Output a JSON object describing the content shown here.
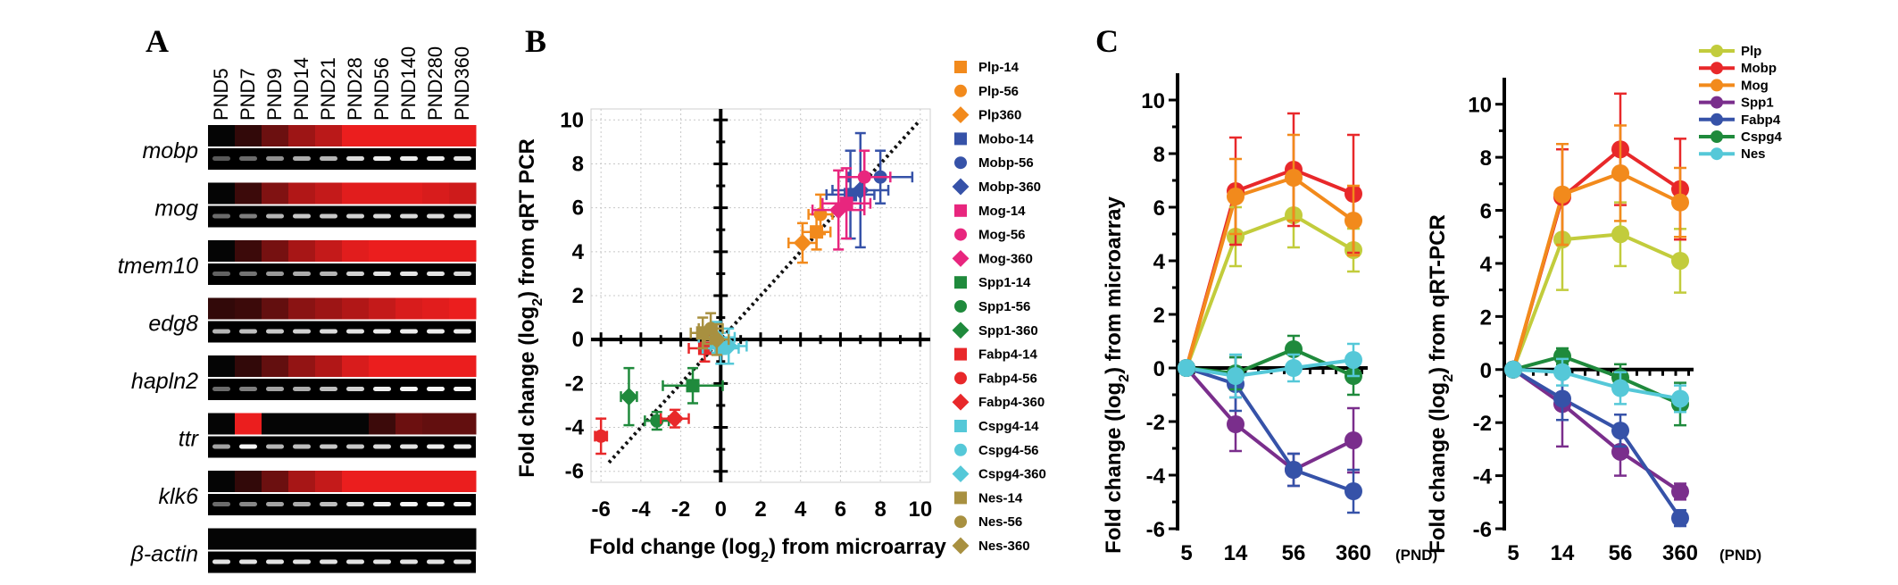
{
  "panel_labels": {
    "a": "A",
    "b": "B",
    "c": "C"
  },
  "gel": {
    "lanes": [
      "PND5",
      "PND7",
      "PND9",
      "PND14",
      "PND21",
      "PND28",
      "PND56",
      "PND140",
      "PND280",
      "PND360"
    ],
    "genes": [
      {
        "name": "mobp",
        "heat": [
          0.0,
          0.05,
          0.35,
          0.6,
          0.75,
          1,
          1,
          1,
          1,
          1
        ],
        "band": [
          0.1,
          0.2,
          0.4,
          0.55,
          0.6,
          0.8,
          0.9,
          0.9,
          0.9,
          0.85
        ]
      },
      {
        "name": "mog",
        "heat": [
          0.0,
          0.1,
          0.45,
          0.7,
          0.8,
          0.95,
          0.95,
          0.95,
          0.9,
          0.85
        ],
        "band": [
          0.2,
          0.3,
          0.6,
          0.7,
          0.7,
          0.75,
          0.8,
          0.8,
          0.8,
          0.8
        ]
      },
      {
        "name": "tmem10",
        "heat": [
          0.0,
          0.1,
          0.4,
          0.65,
          0.8,
          0.95,
          1,
          1,
          1,
          1
        ],
        "band": [
          0.15,
          0.25,
          0.45,
          0.55,
          0.6,
          0.75,
          0.85,
          0.85,
          0.85,
          0.8
        ]
      },
      {
        "name": "edg8",
        "heat": [
          0.05,
          0.1,
          0.3,
          0.5,
          0.6,
          0.7,
          0.8,
          0.9,
          0.95,
          1
        ],
        "band": [
          0.6,
          0.65,
          0.7,
          0.75,
          0.8,
          0.85,
          0.9,
          0.9,
          0.9,
          0.9
        ]
      },
      {
        "name": "hapln2",
        "heat": [
          0.0,
          0.05,
          0.3,
          0.55,
          0.7,
          0.9,
          1,
          1,
          1,
          1
        ],
        "band": [
          0.2,
          0.3,
          0.5,
          0.55,
          0.65,
          0.75,
          0.9,
          0.95,
          0.95,
          0.95
        ]
      },
      {
        "name": "ttr",
        "heat": [
          0.0,
          1,
          0.0,
          0.0,
          0.0,
          0.0,
          0.1,
          0.35,
          0.3,
          0.3
        ],
        "band": [
          0.5,
          0.95,
          0.6,
          0.65,
          0.7,
          0.7,
          0.8,
          0.85,
          0.9,
          0.9
        ]
      },
      {
        "name": "klk6",
        "heat": [
          0.0,
          0.05,
          0.35,
          0.65,
          0.8,
          1,
          1,
          1,
          1,
          1
        ],
        "band": [
          0.2,
          0.35,
          0.5,
          0.55,
          0.65,
          0.8,
          0.9,
          0.95,
          0.95,
          0.95
        ]
      },
      {
        "name": "β-actin",
        "heat": [
          0,
          0,
          0,
          0,
          0,
          0,
          0,
          0,
          0,
          0
        ],
        "band": [
          0.85,
          0.85,
          0.85,
          0.85,
          0.85,
          0.85,
          0.85,
          0.85,
          0.85,
          0.85
        ]
      }
    ]
  },
  "scatter": {
    "xlabel_pre": "Fold change (log",
    "xlabel_sub": "2",
    "xlabel_post": ") from microarray",
    "ylabel_pre": "Fold change (log",
    "ylabel_sub": "2",
    "ylabel_post": ") from qRT PCR",
    "xticks": [
      -6,
      -4,
      -2,
      0,
      2,
      4,
      6,
      8,
      10
    ],
    "yticks": [
      10,
      8,
      6,
      4,
      2,
      0,
      -2,
      -4,
      -6
    ],
    "xlim": [
      -6.5,
      10.5
    ],
    "ylim": [
      -6.5,
      10.5
    ],
    "legend": [
      {
        "label": "Plp-14",
        "color": "#f28a1c",
        "shape": "square"
      },
      {
        "label": "Plp-56",
        "color": "#f28a1c",
        "shape": "circle"
      },
      {
        "label": "Plp360",
        "color": "#f28a1c",
        "shape": "diamond"
      },
      {
        "label": "Mobo-14",
        "color": "#3652a8",
        "shape": "square"
      },
      {
        "label": "Mobp-56",
        "color": "#3652a8",
        "shape": "circle"
      },
      {
        "label": "Mobp-360",
        "color": "#3652a8",
        "shape": "diamond"
      },
      {
        "label": "Mog-14",
        "color": "#e8267e",
        "shape": "square"
      },
      {
        "label": "Mog-56",
        "color": "#e8267e",
        "shape": "circle"
      },
      {
        "label": "Mog-360",
        "color": "#e8267e",
        "shape": "diamond"
      },
      {
        "label": "Spp1-14",
        "color": "#1f8a3c",
        "shape": "square"
      },
      {
        "label": "Spp1-56",
        "color": "#1f8a3c",
        "shape": "circle"
      },
      {
        "label": "Spp1-360",
        "color": "#1f8a3c",
        "shape": "diamond"
      },
      {
        "label": "Fabp4-14",
        "color": "#e8282a",
        "shape": "square"
      },
      {
        "label": "Fabp4-56",
        "color": "#e8282a",
        "shape": "circle"
      },
      {
        "label": "Fabp4-360",
        "color": "#e8282a",
        "shape": "diamond"
      },
      {
        "label": "Cspg4-14",
        "color": "#55c8d8",
        "shape": "square"
      },
      {
        "label": "Cspg4-56",
        "color": "#55c8d8",
        "shape": "circle"
      },
      {
        "label": "Cspg4-360",
        "color": "#55c8d8",
        "shape": "diamond"
      },
      {
        "label": "Nes-14",
        "color": "#a89040",
        "shape": "square"
      },
      {
        "label": "Nes-56",
        "color": "#a89040",
        "shape": "circle"
      },
      {
        "label": "Nes-360",
        "color": "#a89040",
        "shape": "diamond"
      }
    ]
  },
  "chart_data": [
    {
      "type": "scatter",
      "title": "B",
      "xlabel": "Fold change (log2) from microarray",
      "ylabel": "Fold change (log2) from qRT PCR",
      "xlim": [
        -6.5,
        10.5
      ],
      "ylim": [
        -6.5,
        10.5
      ],
      "reference_line": {
        "slope": 1,
        "intercept": 0,
        "style": "dotted"
      },
      "points": [
        {
          "name": "Plp-14",
          "x": 4.8,
          "y": 4.9,
          "xerr": 0.7,
          "yerr": 0.8
        },
        {
          "name": "Plp-56",
          "x": 5.0,
          "y": 5.7,
          "xerr": 0.6,
          "yerr": 0.9
        },
        {
          "name": "Plp360",
          "x": 4.1,
          "y": 4.4,
          "xerr": 0.7,
          "yerr": 0.9
        },
        {
          "name": "Mobo-14",
          "x": 6.5,
          "y": 6.6,
          "xerr": 1.2,
          "yerr": 2.0
        },
        {
          "name": "Mobp-56",
          "x": 8.0,
          "y": 7.4,
          "xerr": 1.6,
          "yerr": 1.2
        },
        {
          "name": "Mobp-360",
          "x": 7.0,
          "y": 6.8,
          "xerr": 1.4,
          "yerr": 2.6
        },
        {
          "name": "Mog-14",
          "x": 6.3,
          "y": 6.2,
          "xerr": 1.2,
          "yerr": 1.6
        },
        {
          "name": "Mog-56",
          "x": 7.2,
          "y": 7.4,
          "xerr": 1.3,
          "yerr": 1.2
        },
        {
          "name": "Mog-360",
          "x": 5.9,
          "y": 5.9,
          "xerr": 1.3,
          "yerr": 1.8
        },
        {
          "name": "Spp1-14",
          "x": -1.4,
          "y": -2.1,
          "xerr": 1.5,
          "yerr": 0.8
        },
        {
          "name": "Spp1-56",
          "x": -3.2,
          "y": -3.7,
          "xerr": 0.6,
          "yerr": 0.4
        },
        {
          "name": "Spp1-360",
          "x": -4.6,
          "y": -2.6,
          "xerr": 0.4,
          "yerr": 1.3
        },
        {
          "name": "Fabp4-14",
          "x": -0.8,
          "y": -0.4,
          "xerr": 0.8,
          "yerr": 0.6
        },
        {
          "name": "Fabp4-56",
          "x": -6.0,
          "y": -4.4,
          "xerr": 0.3,
          "yerr": 0.8
        },
        {
          "name": "Fabp4-360",
          "x": -2.3,
          "y": -3.6,
          "xerr": 0.7,
          "yerr": 0.4
        },
        {
          "name": "Cspg4-14",
          "x": 0.0,
          "y": -0.4,
          "xerr": 0.9,
          "yerr": 0.7
        },
        {
          "name": "Cspg4-56",
          "x": -0.2,
          "y": 0.1,
          "xerr": 0.9,
          "yerr": 0.7
        },
        {
          "name": "Cspg4-360",
          "x": 0.4,
          "y": -0.3,
          "xerr": 0.9,
          "yerr": 0.8
        },
        {
          "name": "Nes-14",
          "x": -0.9,
          "y": 0.3,
          "xerr": 0.6,
          "yerr": 0.7
        },
        {
          "name": "Nes-56",
          "x": -0.5,
          "y": 0.5,
          "xerr": 0.6,
          "yerr": 0.7
        },
        {
          "name": "Nes-360",
          "x": -0.2,
          "y": 0.0,
          "xerr": 0.6,
          "yerr": 0.7
        }
      ]
    },
    {
      "type": "line",
      "title": "C (microarray)",
      "ylabel": "Fold change (log2) from microarray",
      "xlabel": "(PND)",
      "x": [
        5,
        14,
        56,
        360
      ],
      "ylim": [
        -6,
        11
      ],
      "series": [
        {
          "name": "Plp",
          "color": "#c2cc3c",
          "values": [
            0,
            4.9,
            5.7,
            4.4
          ],
          "errors": [
            0,
            1.1,
            1.2,
            0.8
          ]
        },
        {
          "name": "Mobp",
          "color": "#e8282a",
          "values": [
            0,
            6.6,
            7.4,
            6.5
          ],
          "errors": [
            0,
            2.0,
            2.1,
            2.2
          ]
        },
        {
          "name": "Mog",
          "color": "#f28a1c",
          "values": [
            0,
            6.4,
            7.1,
            5.5
          ],
          "errors": [
            0,
            1.4,
            1.6,
            1.3
          ]
        },
        {
          "name": "Spp1",
          "color": "#7a2e8c",
          "values": [
            0,
            -2.1,
            -3.8,
            -2.7
          ],
          "errors": [
            0,
            1.0,
            0.6,
            1.2
          ]
        },
        {
          "name": "Fabp4",
          "color": "#3652a8",
          "values": [
            0,
            -0.6,
            -3.8,
            -4.6
          ],
          "errors": [
            0,
            1.0,
            0.6,
            0.8
          ]
        },
        {
          "name": "Cspg4",
          "color": "#1f8a3c",
          "values": [
            0,
            -0.2,
            0.7,
            -0.3
          ],
          "errors": [
            0,
            0.6,
            0.5,
            0.7
          ]
        },
        {
          "name": "Nes",
          "color": "#55c8d8",
          "values": [
            0,
            -0.3,
            0.0,
            0.3
          ],
          "errors": [
            0,
            0.8,
            0.5,
            0.6
          ]
        }
      ]
    },
    {
      "type": "line",
      "title": "C (qRT-PCR)",
      "ylabel": "Fold change (log2) from qRT-PCR",
      "xlabel": "(PND)",
      "x": [
        5,
        14,
        56,
        360
      ],
      "ylim": [
        -6,
        11
      ],
      "series": [
        {
          "name": "Plp",
          "color": "#c2cc3c",
          "values": [
            0,
            4.9,
            5.1,
            4.1
          ],
          "errors": [
            0,
            1.9,
            1.2,
            1.2
          ]
        },
        {
          "name": "Mobp",
          "color": "#e8282a",
          "values": [
            0,
            6.5,
            8.3,
            6.8
          ],
          "errors": [
            0,
            1.8,
            2.1,
            1.9
          ]
        },
        {
          "name": "Mog",
          "color": "#f28a1c",
          "values": [
            0,
            6.6,
            7.4,
            6.3
          ],
          "errors": [
            0,
            1.9,
            1.8,
            1.3
          ]
        },
        {
          "name": "Spp1",
          "color": "#7a2e8c",
          "values": [
            0,
            -1.3,
            -3.1,
            -4.6
          ],
          "errors": [
            0,
            1.6,
            0.9,
            0.3
          ]
        },
        {
          "name": "Fabp4",
          "color": "#3652a8",
          "values": [
            0,
            -1.1,
            -2.3,
            -5.6
          ],
          "errors": [
            0,
            0.8,
            0.6,
            0.3
          ]
        },
        {
          "name": "Cspg4",
          "color": "#1f8a3c",
          "values": [
            0,
            0.5,
            -0.3,
            -1.3
          ],
          "errors": [
            0,
            0.3,
            0.5,
            0.8
          ]
        },
        {
          "name": "Nes",
          "color": "#55c8d8",
          "values": [
            0,
            -0.1,
            -0.7,
            -1.1
          ],
          "errors": [
            0,
            0.5,
            0.6,
            0.5
          ]
        }
      ]
    }
  ],
  "linec": {
    "ylabel1_pre": "Fold change (log",
    "ylabel1_sub": "2",
    "ylabel1_post": ") from microarray",
    "ylabel2_pre": "Fold change (log",
    "ylabel2_sub": "2",
    "ylabel2_post": ") from qRT-PCR",
    "xticks": [
      "5",
      "14",
      "56",
      "360"
    ],
    "yticks": [
      "10",
      "8",
      "6",
      "4",
      "2",
      "0",
      "-2",
      "-4",
      "-6"
    ],
    "unit": "(PND)"
  }
}
